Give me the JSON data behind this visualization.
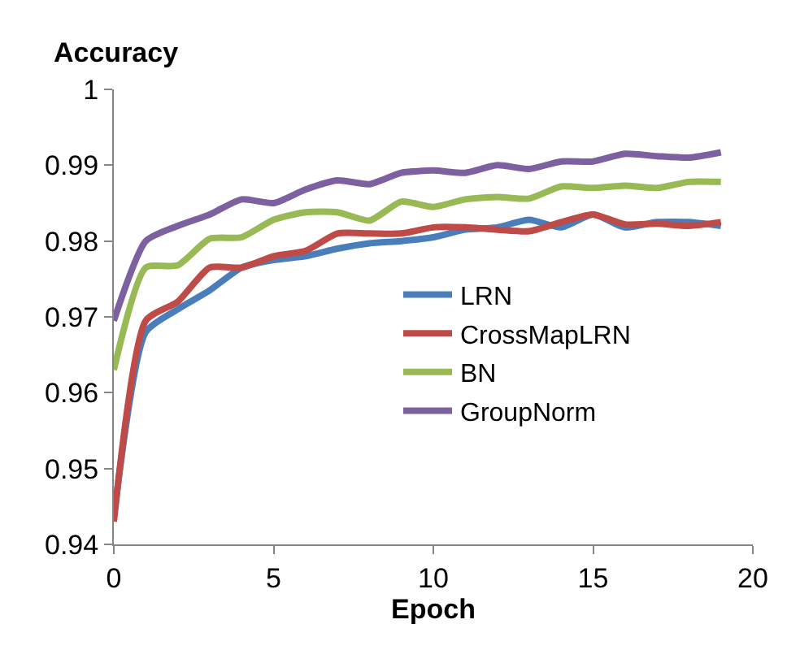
{
  "chart_data": {
    "type": "line",
    "xlabel": "Epoch",
    "ylabel": "Accuracy",
    "x": [
      0,
      1,
      2,
      3,
      4,
      5,
      6,
      7,
      8,
      9,
      10,
      11,
      12,
      13,
      14,
      15,
      16,
      17,
      18,
      19
    ],
    "xlim": [
      0,
      20
    ],
    "xticks": [
      0,
      5,
      10,
      15,
      20
    ],
    "ylim": [
      0.94,
      1
    ],
    "yticks": [
      0.94,
      0.95,
      0.96,
      0.97,
      0.98,
      0.99,
      1
    ],
    "grid": false,
    "legend": "center right",
    "marker": "none",
    "line_style": "solid",
    "series": [
      {
        "name": "LRN",
        "color": "#4a7ebb",
        "values": [
          0.9435,
          0.968,
          0.971,
          0.9735,
          0.9765,
          0.9775,
          0.978,
          0.979,
          0.9797,
          0.98,
          0.9805,
          0.9815,
          0.9818,
          0.9828,
          0.9818,
          0.9835,
          0.9818,
          0.9825,
          0.9825,
          0.982
        ]
      },
      {
        "name": "CrossMapLRN",
        "color": "#be4b48",
        "values": [
          0.943,
          0.9695,
          0.972,
          0.9765,
          0.9765,
          0.978,
          0.9787,
          0.981,
          0.981,
          0.981,
          0.9818,
          0.9818,
          0.9815,
          0.9813,
          0.9825,
          0.9835,
          0.9822,
          0.9823,
          0.982,
          0.9825
        ]
      },
      {
        "name": "BN",
        "color": "#98b954",
        "values": [
          0.963,
          0.9765,
          0.9768,
          0.9803,
          0.9805,
          0.9828,
          0.9838,
          0.9838,
          0.9827,
          0.9852,
          0.9845,
          0.9855,
          0.9858,
          0.9856,
          0.9872,
          0.987,
          0.9873,
          0.987,
          0.9878,
          0.9878
        ]
      },
      {
        "name": "GroupNorm",
        "color": "#7d60a0",
        "values": [
          0.9695,
          0.98,
          0.982,
          0.9835,
          0.9855,
          0.985,
          0.9868,
          0.988,
          0.9875,
          0.989,
          0.9893,
          0.989,
          0.99,
          0.9895,
          0.9905,
          0.9905,
          0.9915,
          0.9912,
          0.991,
          0.9917
        ]
      }
    ]
  }
}
